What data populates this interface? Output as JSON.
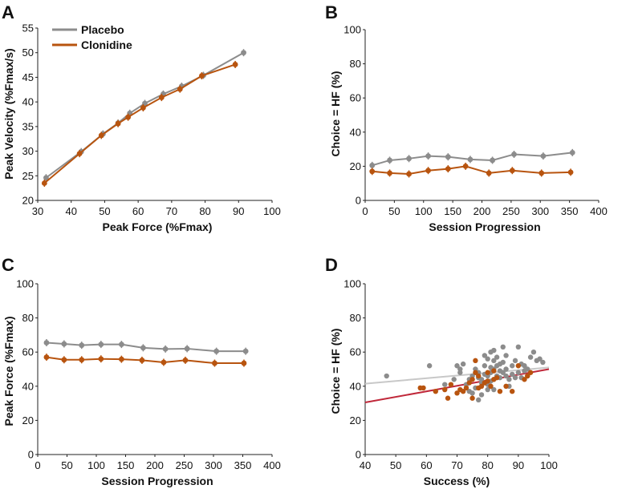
{
  "colors": {
    "placebo": "#8c8c8c",
    "clonidine": "#b8540f",
    "fit_placebo": "#c8c8c8",
    "fit_clonidine": "#c0283a",
    "axis": "#222222"
  },
  "chart_data": [
    {
      "letter": "A",
      "type": "line",
      "xlabel": "Peak Force (%Fmax)",
      "ylabel": "Peak Velocity (%Fmax/s)",
      "xlim": [
        30,
        100
      ],
      "ylim": [
        20,
        55
      ],
      "xticks": [
        "30",
        "40",
        "50",
        "60",
        "70",
        "80",
        "90",
        "100"
      ],
      "yticks": [
        "20",
        "25",
        "30",
        "35",
        "40",
        "45",
        "50",
        "55"
      ],
      "legend": {
        "position": "top-left",
        "entries": [
          "Placebo",
          "Clonidine"
        ]
      },
      "series": [
        {
          "name": "Placebo",
          "x": [
            32.5,
            43,
            49.5,
            54,
            57.5,
            62,
            67.5,
            73,
            79.5,
            91.5
          ],
          "y": [
            24.6,
            29.9,
            33.5,
            35.7,
            37.7,
            39.7,
            41.6,
            43.2,
            45.4,
            50.0
          ]
        },
        {
          "name": "Clonidine",
          "x": [
            32,
            42.5,
            49,
            54,
            57,
            61.5,
            67,
            72.5,
            79,
            89
          ],
          "y": [
            23.5,
            29.5,
            33.2,
            35.6,
            36.9,
            38.8,
            40.9,
            42.6,
            45.3,
            47.6
          ]
        }
      ]
    },
    {
      "letter": "B",
      "type": "line",
      "xlabel": "Session Progression",
      "ylabel": "Choice = HF (%)",
      "xlim": [
        0,
        400
      ],
      "ylim": [
        0,
        100
      ],
      "xticks": [
        "0",
        "50",
        "100",
        "150",
        "200",
        "250",
        "300",
        "350",
        "400"
      ],
      "yticks": [
        "0",
        "20",
        "40",
        "60",
        "80",
        "100"
      ],
      "series": [
        {
          "name": "Placebo",
          "x": [
            12,
            42,
            75,
            108,
            142,
            180,
            218,
            255,
            305,
            355
          ],
          "y": [
            20.5,
            23.5,
            24.5,
            26,
            25.5,
            24,
            23.5,
            27,
            26,
            28
          ]
        },
        {
          "name": "Clonidine",
          "x": [
            12,
            42,
            75,
            108,
            142,
            172,
            212,
            252,
            302,
            352
          ],
          "y": [
            17,
            16,
            15.5,
            17.5,
            18.5,
            20,
            16,
            17.5,
            16,
            16.5
          ]
        }
      ]
    },
    {
      "letter": "C",
      "type": "line",
      "xlabel": "Session Progression",
      "ylabel": "Peak Force (%Fmax)",
      "xlim": [
        0,
        400
      ],
      "ylim": [
        0,
        100
      ],
      "xticks": [
        "0",
        "50",
        "100",
        "150",
        "200",
        "250",
        "300",
        "350",
        "400"
      ],
      "yticks": [
        "0",
        "20",
        "40",
        "60",
        "80",
        "100"
      ],
      "series": [
        {
          "name": "Placebo",
          "x": [
            15,
            45,
            75,
            108,
            143,
            180,
            218,
            255,
            305,
            355
          ],
          "y": [
            65.5,
            64.8,
            64,
            64.5,
            64.5,
            62.5,
            61.8,
            62,
            60.5,
            60.5
          ]
        },
        {
          "name": "Clonidine",
          "x": [
            15,
            45,
            75,
            108,
            143,
            178,
            215,
            252,
            302,
            352
          ],
          "y": [
            57,
            55.5,
            55.5,
            56,
            55.8,
            55.2,
            54,
            55.2,
            53.5,
            53.5
          ]
        }
      ]
    },
    {
      "letter": "D",
      "type": "scatter",
      "xlabel": "Success (%)",
      "ylabel": "Choice = HF (%)",
      "xlim": [
        40,
        100
      ],
      "ylim": [
        0,
        100
      ],
      "xticks": [
        "40",
        "50",
        "60",
        "70",
        "80",
        "90",
        "100"
      ],
      "yticks": [
        "0",
        "20",
        "40",
        "60",
        "80",
        "100"
      ],
      "series": [
        {
          "name": "Placebo",
          "points": [
            [
              47,
              46
            ],
            [
              61,
              52
            ],
            [
              66,
              41
            ],
            [
              69,
              44
            ],
            [
              70,
              52
            ],
            [
              71,
              50
            ],
            [
              71,
              48
            ],
            [
              72,
              53
            ],
            [
              73,
              41
            ],
            [
              74,
              37
            ],
            [
              74,
              44
            ],
            [
              75,
              46
            ],
            [
              75,
              36
            ],
            [
              76,
              39
            ],
            [
              76,
              50
            ],
            [
              77,
              45
            ],
            [
              77,
              32
            ],
            [
              77,
              48
            ],
            [
              78,
              42
            ],
            [
              78,
              35
            ],
            [
              78,
              44
            ],
            [
              79,
              47
            ],
            [
              79,
              52
            ],
            [
              79,
              58
            ],
            [
              80,
              56
            ],
            [
              80,
              41
            ],
            [
              80,
              38
            ],
            [
              80,
              46
            ],
            [
              81,
              60
            ],
            [
              81,
              51
            ],
            [
              81,
              43
            ],
            [
              81,
              48
            ],
            [
              82,
              44
            ],
            [
              82,
              55
            ],
            [
              82,
              61
            ],
            [
              82,
              38
            ],
            [
              82,
              50
            ],
            [
              83,
              52
            ],
            [
              83,
              46
            ],
            [
              83,
              57
            ],
            [
              84,
              45
            ],
            [
              84,
              49
            ],
            [
              84,
              53
            ],
            [
              85,
              63
            ],
            [
              85,
              48
            ],
            [
              85,
              54
            ],
            [
              86,
              46
            ],
            [
              86,
              50
            ],
            [
              86,
              58
            ],
            [
              87,
              44
            ],
            [
              87,
              40
            ],
            [
              88,
              47
            ],
            [
              88,
              52
            ],
            [
              89,
              55
            ],
            [
              89,
              45
            ],
            [
              90,
              63
            ],
            [
              90,
              48
            ],
            [
              91,
              53
            ],
            [
              91,
              45
            ],
            [
              92,
              49
            ],
            [
              92,
              52
            ],
            [
              93,
              50
            ],
            [
              93,
              46
            ],
            [
              94,
              57
            ],
            [
              95,
              60
            ],
            [
              96,
              55
            ],
            [
              97,
              56
            ],
            [
              98,
              54
            ]
          ]
        },
        {
          "name": "Clonidine",
          "points": [
            [
              58,
              39
            ],
            [
              59,
              39
            ],
            [
              63,
              37
            ],
            [
              66,
              38
            ],
            [
              67,
              33
            ],
            [
              68,
              41
            ],
            [
              70,
              36
            ],
            [
              71,
              38
            ],
            [
              72,
              37
            ],
            [
              73,
              39
            ],
            [
              74,
              42
            ],
            [
              75,
              33
            ],
            [
              75,
              44
            ],
            [
              76,
              55
            ],
            [
              76,
              48
            ],
            [
              77,
              39
            ],
            [
              77,
              46
            ],
            [
              78,
              40
            ],
            [
              79,
              42
            ],
            [
              80,
              43
            ],
            [
              80,
              48
            ],
            [
              81,
              40
            ],
            [
              82,
              49
            ],
            [
              82,
              44
            ],
            [
              83,
              45
            ],
            [
              84,
              37
            ],
            [
              86,
              40
            ],
            [
              88,
              37
            ],
            [
              90,
              52
            ],
            [
              92,
              44
            ],
            [
              93,
              46
            ],
            [
              94,
              48
            ]
          ]
        }
      ],
      "fits": [
        {
          "name": "Placebo fit",
          "x": [
            40,
            100
          ],
          "y": [
            41.5,
            51
          ]
        },
        {
          "name": "Clonidine fit",
          "x": [
            40,
            100
          ],
          "y": [
            30.5,
            50
          ]
        }
      ]
    }
  ]
}
